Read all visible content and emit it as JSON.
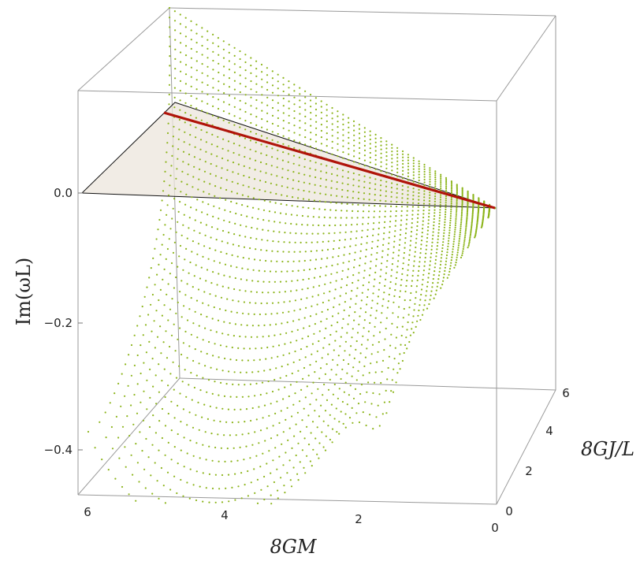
{
  "chart_data": {
    "type": "scatter",
    "title": "",
    "xlabel": "8GM",
    "ylabel": "8GJ/L",
    "zlabel": "Im(ωL)",
    "x_ticks": [
      "6",
      "4",
      "2",
      "0"
    ],
    "y_ticks": [
      "0",
      "2",
      "4",
      "6"
    ],
    "z_ticks": [
      "0.0",
      "−0.2",
      "−0.4"
    ],
    "xlim": [
      0,
      6
    ],
    "ylim": [
      0,
      6
    ],
    "zlim": [
      -0.45,
      0.15
    ],
    "surface_description_points": [
      {
        "x": 6,
        "y": 0,
        "z": -0.37
      },
      {
        "x": 0,
        "y": 0,
        "z": 0.0
      },
      {
        "x": 6,
        "y": 6,
        "z": 0.2
      },
      {
        "x": 0,
        "y": 6,
        "z": 0.0
      },
      {
        "x": 2,
        "y": 0,
        "z": -0.45
      }
    ],
    "line_series": {
      "name": "",
      "points": [
        {
          "x": 6,
          "y": 6,
          "z": 0.12
        },
        {
          "x": 0,
          "y": 6,
          "z": 0.0
        }
      ]
    },
    "colors": {
      "points": "#8db51c",
      "line": "#b0140a",
      "plane": "#ece6dc",
      "box": "#9a9a9a"
    }
  }
}
